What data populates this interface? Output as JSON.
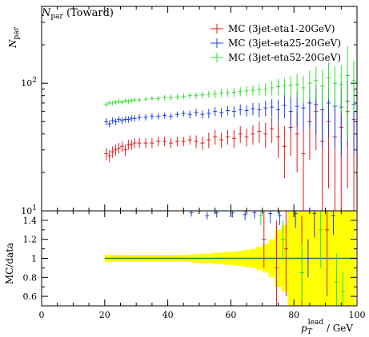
{
  "chart_data": [
    {
      "type": "scatter",
      "title": "N_par (Toward)",
      "title_main": "N",
      "title_sub": "par",
      "title_suffix": " (Toward)",
      "ylabel_main": "N",
      "ylabel_sub": "par",
      "ylog": true,
      "ylim": [
        10,
        400
      ],
      "xlim": [
        0,
        100
      ],
      "y_tick_labels": [
        {
          "base": "10",
          "exp": "1",
          "value": 10
        },
        {
          "base": "10",
          "exp": "2",
          "value": 100
        }
      ],
      "legend_position": "top-right",
      "series": [
        {
          "name": "MC (3jet-eta1-20GeV)",
          "color": "#e41a1c",
          "x": [
            20.5,
            21.5,
            22.5,
            23.5,
            24.5,
            25.5,
            26.5,
            27.5,
            28.5,
            29.5,
            31,
            33,
            35,
            37,
            39,
            41,
            43,
            45,
            47,
            49,
            51,
            53,
            55,
            57,
            59,
            61,
            63,
            65,
            67,
            69,
            71,
            73,
            75,
            77,
            79,
            81,
            83,
            85,
            87,
            89,
            91,
            93,
            95,
            97,
            99
          ],
          "y": [
            28,
            27,
            29,
            30,
            31,
            32,
            30,
            33,
            33,
            34,
            34,
            34,
            34,
            35,
            35,
            34,
            35,
            35,
            36,
            35,
            34,
            36,
            38,
            36,
            38,
            37,
            40,
            38,
            40,
            42,
            40,
            44,
            38,
            32,
            45,
            40,
            28,
            50,
            60,
            35,
            50,
            38,
            45,
            60,
            52
          ],
          "err": [
            3,
            3,
            3,
            3,
            3,
            3,
            3,
            3,
            3,
            3,
            3,
            3,
            3,
            3,
            3,
            3,
            3,
            3,
            3,
            4,
            4,
            5,
            5,
            5,
            5,
            6,
            6,
            6,
            7,
            8,
            9,
            10,
            12,
            14,
            18,
            20,
            20,
            25,
            30,
            30,
            35,
            35,
            40,
            45,
            45
          ]
        },
        {
          "name": "MC (3jet-eta25-20GeV)",
          "color": "#1f3fe0",
          "x": [
            20.5,
            21.5,
            22.5,
            23.5,
            24.5,
            25.5,
            26.5,
            27.5,
            28.5,
            29.5,
            31,
            33,
            35,
            37,
            39,
            41,
            43,
            45,
            47,
            49,
            51,
            53,
            55,
            57,
            59,
            61,
            63,
            65,
            67,
            69,
            71,
            73,
            75,
            77,
            79,
            81,
            83,
            85,
            87,
            89,
            91,
            93,
            95,
            97,
            99
          ],
          "y": [
            50,
            48,
            51,
            50,
            52,
            51,
            52,
            52,
            53,
            53,
            54,
            54,
            55,
            55,
            56,
            55,
            57,
            58,
            57,
            59,
            57,
            58,
            60,
            59,
            61,
            60,
            62,
            61,
            63,
            62,
            64,
            65,
            62,
            67,
            60,
            66,
            64,
            70,
            68,
            62,
            70,
            66,
            65,
            72,
            68
          ],
          "err": [
            3,
            3,
            3,
            3,
            3,
            3,
            3,
            3,
            3,
            3,
            3,
            3,
            3,
            3,
            3,
            3,
            3,
            3,
            4,
            4,
            4,
            5,
            5,
            5,
            5,
            6,
            6,
            6,
            7,
            8,
            9,
            10,
            12,
            14,
            18,
            20,
            22,
            25,
            28,
            30,
            32,
            35,
            38,
            40,
            40
          ]
        },
        {
          "name": "MC (3jet-eta52-20GeV)",
          "color": "#33dd33",
          "x": [
            20.5,
            21.5,
            22.5,
            23.5,
            24.5,
            25.5,
            26.5,
            27.5,
            28.5,
            29.5,
            31,
            33,
            35,
            37,
            39,
            41,
            43,
            45,
            47,
            49,
            51,
            53,
            55,
            57,
            59,
            61,
            63,
            65,
            67,
            69,
            71,
            73,
            75,
            77,
            79,
            81,
            83,
            85,
            87,
            89,
            91,
            93,
            95,
            97,
            99
          ],
          "y": [
            68,
            70,
            70,
            71,
            72,
            71,
            73,
            72,
            73,
            74,
            74,
            75,
            76,
            76,
            77,
            77,
            78,
            79,
            80,
            80,
            81,
            82,
            82,
            84,
            84,
            85,
            86,
            87,
            88,
            89,
            90,
            92,
            94,
            95,
            96,
            98,
            92,
            100,
            105,
            95,
            110,
            100,
            98,
            115,
            105
          ],
          "err": [
            3,
            3,
            3,
            3,
            3,
            3,
            3,
            3,
            3,
            3,
            3,
            3,
            3,
            4,
            4,
            4,
            4,
            4,
            4,
            5,
            5,
            5,
            6,
            6,
            6,
            7,
            7,
            8,
            8,
            9,
            10,
            12,
            14,
            15,
            18,
            20,
            22,
            25,
            30,
            32,
            35,
            35,
            40,
            80,
            45
          ]
        }
      ]
    },
    {
      "type": "scatter",
      "ylabel": "MC/data",
      "xlabel_main": "p",
      "xlabel_sub": "T",
      "xlabel_sup": "lead",
      "xlabel_suffix": " / GeV",
      "xlim": [
        0,
        100
      ],
      "ylim": [
        0.5,
        1.5
      ],
      "x_ticks": [
        0,
        20,
        40,
        60,
        80,
        100
      ],
      "y_ticks": [
        0.6,
        0.8,
        1,
        1.2,
        1.4
      ],
      "reference_line": 1,
      "band": {
        "color": "#ffff00",
        "x": [
          20.5,
          21.5,
          22.5,
          23.5,
          24.5,
          25.5,
          26.5,
          27.5,
          28.5,
          29.5,
          31,
          33,
          35,
          37,
          39,
          41,
          43,
          45,
          47,
          49,
          51,
          53,
          55,
          57,
          59,
          61,
          63,
          65,
          67,
          69,
          71,
          73,
          75,
          77,
          79,
          81,
          83,
          85,
          87,
          89,
          91,
          93,
          95,
          97,
          99
        ],
        "half_width": [
          0.04,
          0.035,
          0.035,
          0.035,
          0.035,
          0.035,
          0.035,
          0.035,
          0.035,
          0.035,
          0.035,
          0.035,
          0.035,
          0.035,
          0.035,
          0.035,
          0.035,
          0.035,
          0.04,
          0.045,
          0.05,
          0.05,
          0.06,
          0.06,
          0.07,
          0.07,
          0.08,
          0.09,
          0.1,
          0.12,
          0.15,
          0.2,
          0.3,
          0.35,
          0.5,
          0.5,
          0.5,
          0.5,
          0.5,
          0.5,
          0.5,
          0.5,
          0.5,
          0.5,
          0.5
        ]
      },
      "series": [
        {
          "name": "MC (3jet-eta1-20GeV)",
          "color": "#e41a1c",
          "x": [
            70.5,
            74.5,
            77.5,
            82.5,
            90.5
          ],
          "y": [
            1.2,
            0.9,
            1.1,
            0.85,
            1.3
          ],
          "err": [
            0.3,
            0.5,
            0.5,
            0.6,
            0.7
          ]
        },
        {
          "name": "MC (3jet-eta25-20GeV)",
          "color": "#1f3fe0",
          "x": [
            47.5,
            52.5,
            55.5,
            60.5,
            64.5,
            67.5,
            72.5,
            75.5,
            80.5,
            84.5,
            86.5,
            92.5
          ],
          "y": [
            1.48,
            1.45,
            1.48,
            1.48,
            1.46,
            1.48,
            1.47,
            1.45,
            1.47,
            1.0,
            1.47,
            1.45
          ],
          "err": [
            0.04,
            0.04,
            0.05,
            0.05,
            0.06,
            0.06,
            0.1,
            0.1,
            0.15,
            0.2,
            0.25,
            0.2
          ]
        },
        {
          "name": "MC (3jet-eta52-20GeV)",
          "color": "#33dd33",
          "x": [
            69.5,
            76.5,
            82.5,
            88.5,
            93.5,
            95.5
          ],
          "y": [
            1.45,
            1.2,
            0.85,
            1.3,
            0.75,
            0.65
          ],
          "err": [
            0.1,
            0.2,
            0.3,
            0.4,
            0.3,
            0.2
          ]
        }
      ]
    }
  ]
}
